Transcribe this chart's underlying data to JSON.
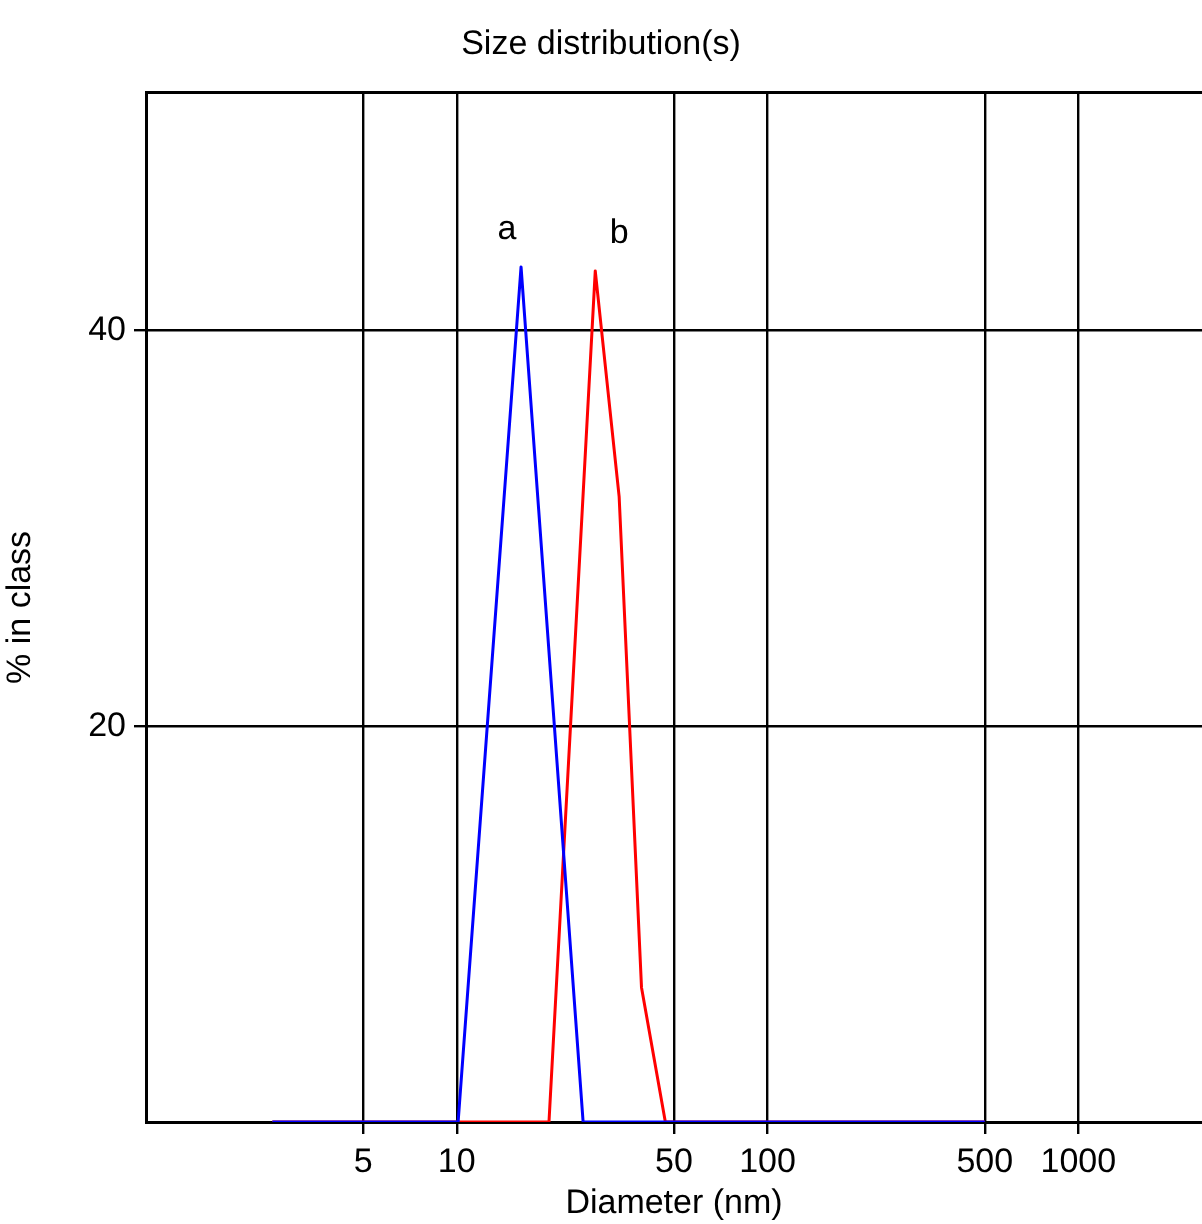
{
  "chart_data": {
    "type": "line",
    "title": "Size distribution(s)",
    "xlabel": "Diameter (nm)",
    "ylabel": "% in class",
    "log": "x",
    "xlim": [
      1,
      2500
    ],
    "xticks": [
      5,
      10,
      50,
      100,
      500,
      1000
    ],
    "ylim": [
      0,
      52
    ],
    "yticks": [
      20,
      40
    ],
    "grid": true,
    "legend": false,
    "marker": "none",
    "line_style": "solid",
    "series": [
      {
        "name": "a",
        "color": "#0000ff",
        "x": [
          2.55,
          10.1,
          16.1,
          25.5,
          500
        ],
        "values": [
          0,
          0,
          43.2,
          0,
          0
        ]
      },
      {
        "name": "b",
        "color": "#ff0000",
        "x": [
          2.55,
          19.8,
          27.9,
          33.3,
          39.3,
          46.9,
          500
        ],
        "values": [
          0,
          0,
          43,
          31.6,
          6.8,
          0,
          0
        ]
      }
    ]
  }
}
